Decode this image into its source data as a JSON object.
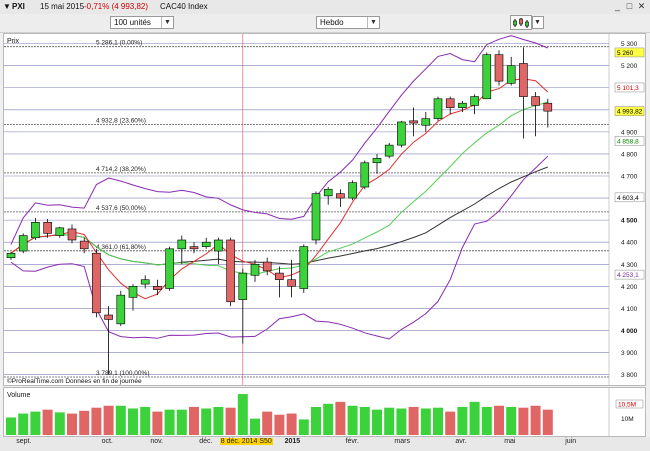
{
  "header": {
    "symbol": "PXI",
    "date": "15 mai 2015",
    "change": "-0,71% (4 993,82)",
    "instrument": "CAC40 Index"
  },
  "toolbar": {
    "units_value": "100 unités",
    "period_value": "Hebdo"
  },
  "price_panel": {
    "label": "Prix",
    "footer": "©ProRealTime.com  Données en fin de journée"
  },
  "volume_panel": {
    "label": "Volume"
  },
  "fib_levels": [
    {
      "label": "5 286,1 (0,00%)",
      "value": 5286.1
    },
    {
      "label": "4 932,8 (23,60%)",
      "value": 4932.8
    },
    {
      "label": "4 714,2 (38,20%)",
      "value": 4714.2
    },
    {
      "label": "4 537,6 (50,00%)",
      "value": 4537.6
    },
    {
      "label": "4 361,0 (61,80%)",
      "value": 4361.0
    },
    {
      "label": "3 789,1 (100,00%)",
      "value": 3789.1
    }
  ],
  "price_badges": [
    {
      "text": "5 260",
      "value": 5260,
      "bg": "#ffff44",
      "fg": "#000000"
    },
    {
      "text": "5 101,3",
      "value": 5101.3,
      "bg": "#ffffff",
      "fg": "#cc0000"
    },
    {
      "text": "4 993,82",
      "value": 4993.82,
      "bg": "#ffff44",
      "fg": "#000000"
    },
    {
      "text": "4 858,8",
      "value": 4858.8,
      "bg": "#ffffff",
      "fg": "#008800"
    },
    {
      "text": "4 603,4",
      "value": 4603.4,
      "bg": "#ffffff",
      "fg": "#000000"
    },
    {
      "text": "4 253,1",
      "value": 4253.1,
      "bg": "#ffffff",
      "fg": "#7a2a9a"
    }
  ],
  "volume_badges": [
    "10,5M",
    "10M"
  ],
  "colors": {
    "bull": "#3cd23c",
    "bear": "#e06666",
    "ma_red": "#e03030",
    "ma_green": "#55cc55",
    "ma_black": "#333333",
    "bollinger": "#8a2ab0",
    "grid_blue": "#4a4aa0",
    "grid_dark": "#555555"
  },
  "chart_data": {
    "type": "candlestick",
    "y_axis_ticks": [
      "5 300",
      "5 200",
      "5 100",
      "5 000",
      "4 900",
      "4 800",
      "4 700",
      "4 600",
      "4 500",
      "4 400",
      "4 300",
      "4 200",
      "4 100",
      "4 000",
      "3 900",
      "3 800"
    ],
    "y_range": [
      3780,
      5330
    ],
    "x_labels": [
      {
        "text": "sept.",
        "week": 1
      },
      {
        "text": "oct.",
        "week": 8
      },
      {
        "text": "nov.",
        "week": 12
      },
      {
        "text": "déc.",
        "week": 16
      },
      {
        "text": "8 déc. 2014 S50",
        "week": 19,
        "highlight": true
      },
      {
        "text": "2015",
        "week": 23,
        "bold": true
      },
      {
        "text": "févr.",
        "week": 28
      },
      {
        "text": "mars",
        "week": 32
      },
      {
        "text": "avr.",
        "week": 37
      },
      {
        "text": "mai",
        "week": 41
      },
      {
        "text": "juin",
        "week": 46
      }
    ],
    "cursor_week": 19,
    "candles": [
      {
        "o": 4330,
        "h": 4355,
        "l": 4320,
        "c": 4350
      },
      {
        "o": 4360,
        "h": 4440,
        "l": 4350,
        "c": 4430
      },
      {
        "o": 4420,
        "h": 4510,
        "l": 4410,
        "c": 4490
      },
      {
        "o": 4490,
        "h": 4505,
        "l": 4420,
        "c": 4440
      },
      {
        "o": 4430,
        "h": 4470,
        "l": 4420,
        "c": 4465
      },
      {
        "o": 4460,
        "h": 4480,
        "l": 4395,
        "c": 4410
      },
      {
        "o": 4405,
        "h": 4420,
        "l": 4350,
        "c": 4370
      },
      {
        "o": 4350,
        "h": 4370,
        "l": 4060,
        "c": 4080
      },
      {
        "o": 4070,
        "h": 4110,
        "l": 3800,
        "c": 4050
      },
      {
        "o": 4030,
        "h": 4180,
        "l": 4020,
        "c": 4160
      },
      {
        "o": 4150,
        "h": 4210,
        "l": 4090,
        "c": 4200
      },
      {
        "o": 4210,
        "h": 4250,
        "l": 4190,
        "c": 4230
      },
      {
        "o": 4200,
        "h": 4230,
        "l": 4160,
        "c": 4185
      },
      {
        "o": 4190,
        "h": 4380,
        "l": 4180,
        "c": 4370
      },
      {
        "o": 4370,
        "h": 4430,
        "l": 4300,
        "c": 4410
      },
      {
        "o": 4380,
        "h": 4400,
        "l": 4350,
        "c": 4370
      },
      {
        "o": 4380,
        "h": 4420,
        "l": 4370,
        "c": 4400
      },
      {
        "o": 4360,
        "h": 4420,
        "l": 4300,
        "c": 4410
      },
      {
        "o": 4410,
        "h": 4420,
        "l": 4110,
        "c": 4130
      },
      {
        "o": 4140,
        "h": 4280,
        "l": 3940,
        "c": 4260
      },
      {
        "o": 4250,
        "h": 4320,
        "l": 4220,
        "c": 4300
      },
      {
        "o": 4310,
        "h": 4330,
        "l": 4250,
        "c": 4270
      },
      {
        "o": 4260,
        "h": 4290,
        "l": 4150,
        "c": 4230
      },
      {
        "o": 4230,
        "h": 4320,
        "l": 4150,
        "c": 4200
      },
      {
        "o": 4190,
        "h": 4390,
        "l": 4170,
        "c": 4380
      },
      {
        "o": 4410,
        "h": 4630,
        "l": 4390,
        "c": 4620
      },
      {
        "o": 4610,
        "h": 4650,
        "l": 4570,
        "c": 4640
      },
      {
        "o": 4620,
        "h": 4640,
        "l": 4560,
        "c": 4600
      },
      {
        "o": 4600,
        "h": 4680,
        "l": 4590,
        "c": 4670
      },
      {
        "o": 4650,
        "h": 4770,
        "l": 4640,
        "c": 4760
      },
      {
        "o": 4760,
        "h": 4800,
        "l": 4710,
        "c": 4780
      },
      {
        "o": 4790,
        "h": 4850,
        "l": 4780,
        "c": 4840
      },
      {
        "o": 4840,
        "h": 4950,
        "l": 4830,
        "c": 4945
      },
      {
        "o": 4950,
        "h": 5010,
        "l": 4880,
        "c": 4940
      },
      {
        "o": 4930,
        "h": 4990,
        "l": 4900,
        "c": 4960
      },
      {
        "o": 4960,
        "h": 5060,
        "l": 4950,
        "c": 5050
      },
      {
        "o": 5050,
        "h": 5060,
        "l": 4980,
        "c": 5010
      },
      {
        "o": 5010,
        "h": 5040,
        "l": 4990,
        "c": 5030
      },
      {
        "o": 5020,
        "h": 5070,
        "l": 4980,
        "c": 5060
      },
      {
        "o": 5050,
        "h": 5260,
        "l": 5050,
        "c": 5250
      },
      {
        "o": 5250,
        "h": 5270,
        "l": 5110,
        "c": 5130
      },
      {
        "o": 5120,
        "h": 5240,
        "l": 5110,
        "c": 5200
      },
      {
        "o": 5210,
        "h": 5283,
        "l": 4870,
        "c": 5060
      },
      {
        "o": 5060,
        "h": 5080,
        "l": 4880,
        "c": 5020
      },
      {
        "o": 5030,
        "h": 5050,
        "l": 4920,
        "c": 4994
      }
    ],
    "volumes": [
      0.45,
      0.55,
      0.6,
      0.65,
      0.58,
      0.55,
      0.62,
      0.7,
      0.75,
      0.75,
      0.68,
      0.72,
      0.6,
      0.65,
      0.65,
      0.72,
      0.68,
      0.72,
      0.7,
      1.05,
      0.42,
      0.6,
      0.52,
      0.55,
      0.4,
      0.72,
      0.8,
      0.85,
      0.75,
      0.72,
      0.65,
      0.7,
      0.68,
      0.72,
      0.68,
      0.7,
      0.6,
      0.72,
      0.85,
      0.72,
      0.75,
      0.72,
      0.7,
      0.75,
      0.65
    ]
  }
}
